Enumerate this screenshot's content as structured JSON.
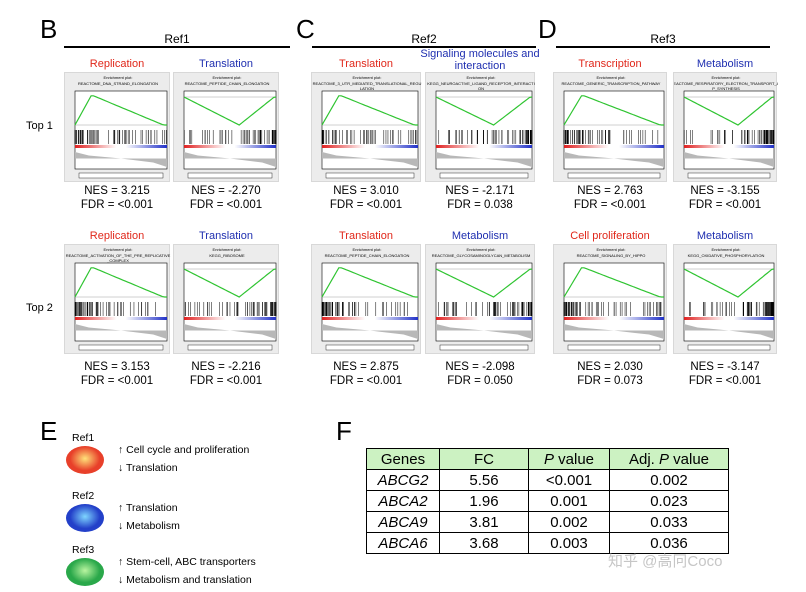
{
  "panels": {
    "B": {
      "letter": "B",
      "ref": "Ref1"
    },
    "C": {
      "letter": "C",
      "ref": "Ref2"
    },
    "D": {
      "letter": "D",
      "ref": "Ref3"
    },
    "E": {
      "letter": "E"
    },
    "F": {
      "letter": "F"
    }
  },
  "row_labels": [
    "Top 1",
    "Top 2"
  ],
  "gsea": [
    {
      "id": "b1a",
      "category": "Replication",
      "cat_color": "red",
      "title": "REACTOME_DNA_STRAND_ELONGATION",
      "shape": "up",
      "nes": "NES = 3.215",
      "fdr": "FDR = <0.001"
    },
    {
      "id": "b1b",
      "category": "Translation",
      "cat_color": "blue",
      "title": "REACTOME_PEPTIDE_CHAIN_ELONGATION",
      "shape": "down",
      "nes": "NES = -2.270",
      "fdr": "FDR = <0.001"
    },
    {
      "id": "c1a",
      "category": "Translation",
      "cat_color": "red",
      "title": "REACTOME_3_UTR_MEDIATED_TRANSLATIONAL_REGULATION",
      "shape": "up",
      "nes": "NES = 3.010",
      "fdr": "FDR = <0.001"
    },
    {
      "id": "c1b",
      "category": "Signaling molecules and interaction",
      "cat_color": "blue",
      "title": "KEGG_NEUROACTIVE_LIGAND_RECEPTOR_INTERACTION",
      "shape": "down",
      "nes": "NES = -2.171",
      "fdr": "FDR = 0.038"
    },
    {
      "id": "d1a",
      "category": "Transcription",
      "cat_color": "red",
      "title": "REACTOME_GENERIC_TRANSCRIPTION_PATHWAY",
      "shape": "up",
      "nes": "NES = 2.763",
      "fdr": "FDR = <0.001"
    },
    {
      "id": "d1b",
      "category": "Metabolism",
      "cat_color": "blue",
      "title": "REACTOME_RESPIRATORY_ELECTRON_TRANSPORT_ATP_SYNTHESIS",
      "shape": "down",
      "nes": "NES = -3.155",
      "fdr": "FDR = <0.001"
    },
    {
      "id": "b2a",
      "category": "Replication",
      "cat_color": "red",
      "title": "REACTOME_ACTIVATION_OF_THE_PRE_REPLICATIVE_COMPLEX",
      "shape": "up",
      "nes": "NES = 3.153",
      "fdr": "FDR = <0.001"
    },
    {
      "id": "b2b",
      "category": "Translation",
      "cat_color": "blue",
      "title": "KEGG_RIBOSOME",
      "shape": "down",
      "nes": "NES = -2.216",
      "fdr": "FDR = <0.001"
    },
    {
      "id": "c2a",
      "category": "Translation",
      "cat_color": "red",
      "title": "REACTOME_PEPTIDE_CHAIN_ELONGATION",
      "shape": "up",
      "nes": "NES = 2.875",
      "fdr": "FDR = <0.001"
    },
    {
      "id": "c2b",
      "category": "Metabolism",
      "cat_color": "blue",
      "title": "REACTOME_GLYCOSAMINOGLYCAN_METABOLISM",
      "shape": "down",
      "nes": "NES = -2.098",
      "fdr": "FDR = 0.050"
    },
    {
      "id": "d2a",
      "category": "Cell proliferation",
      "cat_color": "red",
      "title": "REACTOME_SIGNALING_BY_HIPPO",
      "shape": "up",
      "nes": "NES = 2.030",
      "fdr": "FDR = 0.073"
    },
    {
      "id": "d2b",
      "category": "Metabolism",
      "cat_color": "blue",
      "title": "KEGG_OXIDATIVE_PHOSPHORYLATION",
      "shape": "down",
      "nes": "NES = -3.147",
      "fdr": "FDR = <0.001"
    }
  ],
  "plot_header": "Enrichment plot:",
  "legend_E": [
    {
      "ref": "Ref1",
      "color": "#e8402a",
      "up": "Cell cycle and proliferation",
      "down": "Translation"
    },
    {
      "ref": "Ref2",
      "color": "#2340c9",
      "up": "Translation",
      "down": "Metabolism"
    },
    {
      "ref": "Ref3",
      "color": "#2aa84a",
      "up": "Stem-cell, ABC transporters",
      "down": "Metabolism and translation"
    }
  ],
  "table_F": {
    "headers": [
      "Genes",
      "FC",
      "P value",
      "Adj. P value"
    ],
    "rows": [
      [
        "ABCG2",
        "5.56",
        "<0.001",
        "0.002"
      ],
      [
        "ABCA2",
        "1.96",
        "0.001",
        "0.023"
      ],
      [
        "ABCA9",
        "3.81",
        "0.002",
        "0.033"
      ],
      [
        "ABCA6",
        "3.68",
        "0.003",
        "0.036"
      ]
    ]
  },
  "watermark": "知乎 @高冋Coco"
}
